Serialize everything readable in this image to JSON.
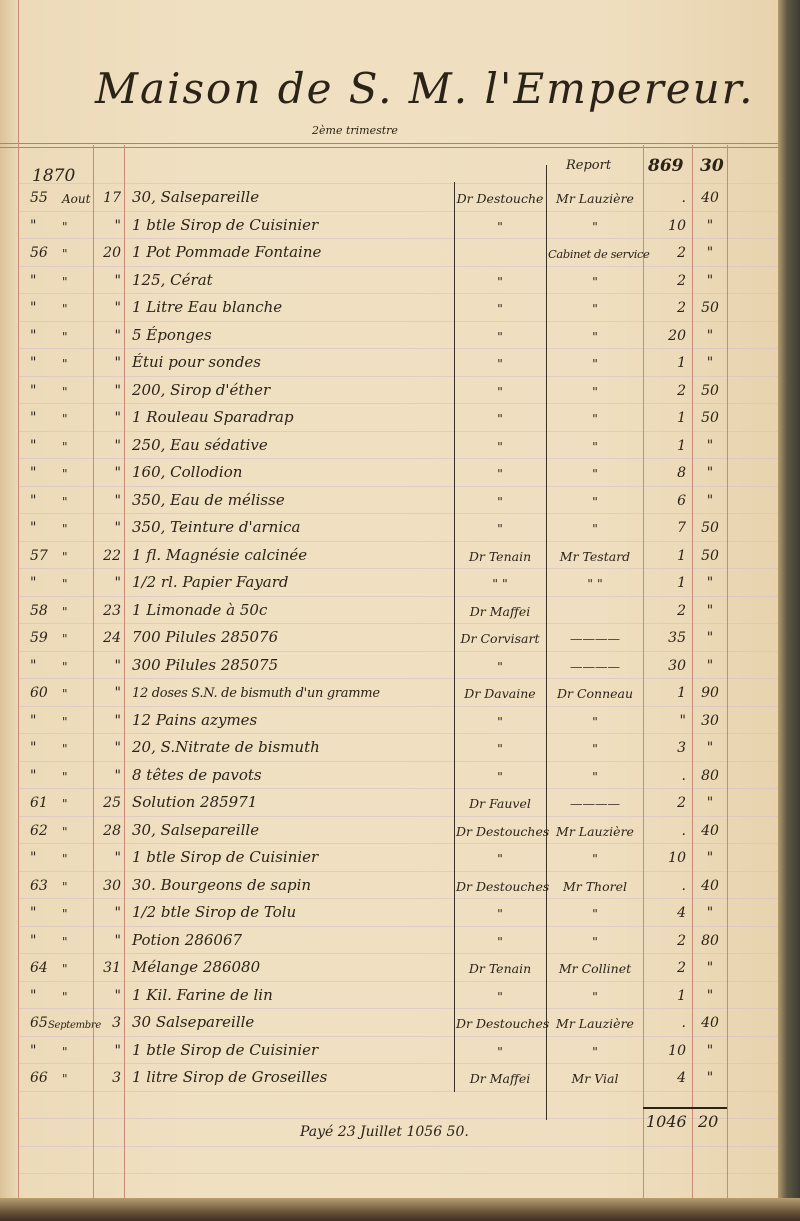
{
  "header": {
    "title": "Maison de S. M. l'Empereur.",
    "subtitle": "2ème trimestre",
    "year": "1870",
    "report_label": "Report",
    "report_francs": "869",
    "report_centimes": "30"
  },
  "rows": [
    {
      "ref": "55",
      "month": "Aout",
      "day": "17",
      "desc": "30, Salsepareille",
      "doctor": "Dr Destouche",
      "recipient": "Mr Lauzière",
      "francs": ".",
      "centimes": "40"
    },
    {
      "ref": "\"",
      "month": "\"",
      "day": "\"",
      "desc": "1 btle Sirop de Cuisinier",
      "doctor": "\"",
      "recipient": "\"",
      "francs": "10",
      "centimes": "\""
    },
    {
      "ref": "56",
      "month": "\"",
      "day": "20",
      "desc": "1 Pot Pommade Fontaine",
      "doctor": "",
      "recipient": "Cabinet de service",
      "francs": "2",
      "centimes": "\""
    },
    {
      "ref": "\"",
      "month": "\"",
      "day": "\"",
      "desc": "125, Cérat",
      "doctor": "\"",
      "recipient": "\"",
      "francs": "2",
      "centimes": "\""
    },
    {
      "ref": "\"",
      "month": "\"",
      "day": "\"",
      "desc": "1 Litre Eau blanche",
      "doctor": "\"",
      "recipient": "\"",
      "francs": "2",
      "centimes": "50"
    },
    {
      "ref": "\"",
      "month": "\"",
      "day": "\"",
      "desc": "5 Éponges",
      "doctor": "\"",
      "recipient": "\"",
      "francs": "20",
      "centimes": "\""
    },
    {
      "ref": "\"",
      "month": "\"",
      "day": "\"",
      "desc": "Étui pour sondes",
      "doctor": "\"",
      "recipient": "\"",
      "francs": "1",
      "centimes": "\""
    },
    {
      "ref": "\"",
      "month": "\"",
      "day": "\"",
      "desc": "200, Sirop d'éther",
      "doctor": "\"",
      "recipient": "\"",
      "francs": "2",
      "centimes": "50"
    },
    {
      "ref": "\"",
      "month": "\"",
      "day": "\"",
      "desc": "1 Rouleau Sparadrap",
      "doctor": "\"",
      "recipient": "\"",
      "francs": "1",
      "centimes": "50"
    },
    {
      "ref": "\"",
      "month": "\"",
      "day": "\"",
      "desc": "250, Eau sédative",
      "doctor": "\"",
      "recipient": "\"",
      "francs": "1",
      "centimes": "\""
    },
    {
      "ref": "\"",
      "month": "\"",
      "day": "\"",
      "desc": "160, Collodion",
      "doctor": "\"",
      "recipient": "\"",
      "francs": "8",
      "centimes": "\""
    },
    {
      "ref": "\"",
      "month": "\"",
      "day": "\"",
      "desc": "350, Eau de mélisse",
      "doctor": "\"",
      "recipient": "\"",
      "francs": "6",
      "centimes": "\""
    },
    {
      "ref": "\"",
      "month": "\"",
      "day": "\"",
      "desc": "350, Teinture d'arnica",
      "doctor": "\"",
      "recipient": "\"",
      "francs": "7",
      "centimes": "50"
    },
    {
      "ref": "57",
      "month": "\"",
      "day": "22",
      "desc": "1 fl. Magnésie calcinée",
      "doctor": "Dr Tenain",
      "recipient": "Mr Testard",
      "francs": "1",
      "centimes": "50"
    },
    {
      "ref": "\"",
      "month": "\"",
      "day": "\"",
      "desc": "1/2 rl. Papier Fayard",
      "doctor": "\" \"",
      "recipient": "\" \"",
      "francs": "1",
      "centimes": "\""
    },
    {
      "ref": "58",
      "month": "\"",
      "day": "23",
      "desc": "1 Limonade à 50c",
      "doctor": "Dr Maffei",
      "recipient": "",
      "francs": "2",
      "centimes": "\""
    },
    {
      "ref": "59",
      "month": "\"",
      "day": "24",
      "desc": "700 Pilules 285076",
      "doctor": "Dr Corvisart",
      "recipient": "————",
      "francs": "35",
      "centimes": "\""
    },
    {
      "ref": "\"",
      "month": "\"",
      "day": "\"",
      "desc": "300 Pilules 285075",
      "doctor": "\"",
      "recipient": "————",
      "francs": "30",
      "centimes": "\""
    },
    {
      "ref": "60",
      "month": "\"",
      "day": "\"",
      "desc": "12 doses S.N. de bismuth d'un gramme",
      "doctor": "Dr Davaine",
      "recipient": "Dr Conneau",
      "francs": "1",
      "centimes": "90"
    },
    {
      "ref": "\"",
      "month": "\"",
      "day": "\"",
      "desc": "12 Pains azymes",
      "doctor": "\"",
      "recipient": "\"",
      "francs": "\"",
      "centimes": "30"
    },
    {
      "ref": "\"",
      "month": "\"",
      "day": "\"",
      "desc": "20, S.Nitrate de bismuth",
      "doctor": "\"",
      "recipient": "\"",
      "francs": "3",
      "centimes": "\""
    },
    {
      "ref": "\"",
      "month": "\"",
      "day": "\"",
      "desc": "8 têtes de pavots",
      "doctor": "\"",
      "recipient": "\"",
      "francs": ".",
      "centimes": "80"
    },
    {
      "ref": "61",
      "month": "\"",
      "day": "25",
      "desc": "Solution 285971",
      "doctor": "Dr Fauvel",
      "recipient": "————",
      "francs": "2",
      "centimes": "\""
    },
    {
      "ref": "62",
      "month": "\"",
      "day": "28",
      "desc": "30, Salsepareille",
      "doctor": "Dr Destouches",
      "recipient": "Mr Lauzière",
      "francs": ".",
      "centimes": "40"
    },
    {
      "ref": "\"",
      "month": "\"",
      "day": "\"",
      "desc": "1 btle Sirop de Cuisinier",
      "doctor": "\"",
      "recipient": "\"",
      "francs": "10",
      "centimes": "\""
    },
    {
      "ref": "63",
      "month": "\"",
      "day": "30",
      "desc": "30. Bourgeons de sapin",
      "doctor": "Dr Destouches",
      "recipient": "Mr Thorel",
      "francs": ".",
      "centimes": "40"
    },
    {
      "ref": "\"",
      "month": "\"",
      "day": "\"",
      "desc": "1/2 btle Sirop de Tolu",
      "doctor": "\"",
      "recipient": "\"",
      "francs": "4",
      "centimes": "\""
    },
    {
      "ref": "\"",
      "month": "\"",
      "day": "\"",
      "desc": "Potion 286067",
      "doctor": "\"",
      "recipient": "\"",
      "francs": "2",
      "centimes": "80"
    },
    {
      "ref": "64",
      "month": "\"",
      "day": "31",
      "desc": "Mélange 286080",
      "doctor": "Dr Tenain",
      "recipient": "Mr Collinet",
      "francs": "2",
      "centimes": "\""
    },
    {
      "ref": "\"",
      "month": "\"",
      "day": "\"",
      "desc": "1 Kil. Farine de lin",
      "doctor": "\"",
      "recipient": "\"",
      "francs": "1",
      "centimes": "\""
    },
    {
      "ref": "65",
      "month": "Septembre",
      "day": "3",
      "desc": "30 Salsepareille",
      "doctor": "Dr Destouches",
      "recipient": "Mr Lauzière",
      "francs": ".",
      "centimes": "40"
    },
    {
      "ref": "\"",
      "month": "\"",
      "day": "\"",
      "desc": "1 btle Sirop de Cuisinier",
      "doctor": "\"",
      "recipient": "\"",
      "francs": "10",
      "centimes": "\""
    },
    {
      "ref": "66",
      "month": "\"",
      "day": "3",
      "desc": "1 litre Sirop de Groseilles",
      "doctor": "Dr Maffei",
      "recipient": "Mr Vial",
      "francs": "4",
      "centimes": "\""
    }
  ],
  "footer": {
    "paid_note": "Payé 23 Juillet 1056 50.",
    "total_francs": "1046",
    "total_centimes": "20"
  }
}
